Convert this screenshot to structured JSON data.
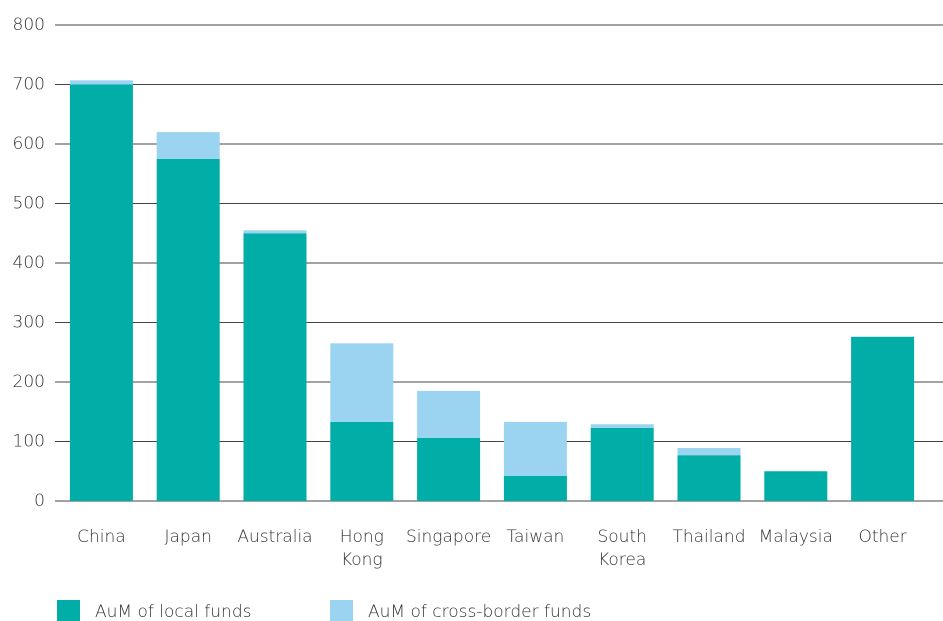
{
  "chart_data": {
    "type": "stacked_bar",
    "categories": [
      "China",
      "Japan",
      "Australia",
      "Hong Kong",
      "Singapore",
      "Taiwan",
      "South Korea",
      "Thailand",
      "Malaysia",
      "Other"
    ],
    "series": [
      {
        "name": "AuM of local funds",
        "color": "#00ada7",
        "values": [
          700,
          575,
          450,
          133,
          106,
          42,
          123,
          77,
          50,
          276
        ]
      },
      {
        "name": "AuM of cross-border funds",
        "color": "#9ad4f0",
        "values": [
          7,
          45,
          5,
          132,
          79,
          91,
          6,
          12,
          0,
          0
        ]
      }
    ],
    "ylim": [
      0,
      800
    ],
    "yticks": [
      0,
      100,
      200,
      300,
      400,
      500,
      600,
      700,
      800
    ],
    "grid": true
  }
}
